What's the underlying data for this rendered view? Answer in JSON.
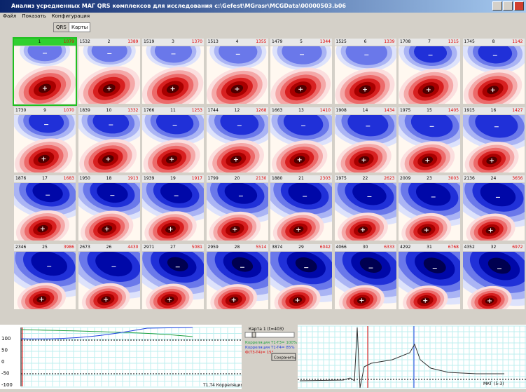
{
  "window": {
    "title": "Анализ усредненных МАГ QRS комплексов для исследования c:\\Gefest\\MGrasr\\MCGData\\00000503.b06"
  },
  "menu": [
    "Файл",
    "Показать",
    "Конфигурация"
  ],
  "tabs": [
    "QRS",
    "Карты"
  ],
  "tiles": [
    {
      "left": "",
      "index": "1",
      "right": "1079"
    },
    {
      "left": "1532",
      "index": "2",
      "right": "1389"
    },
    {
      "left": "1519",
      "index": "3",
      "right": "1370"
    },
    {
      "left": "1513",
      "index": "4",
      "right": "1355"
    },
    {
      "left": "1479",
      "index": "5",
      "right": "1344"
    },
    {
      "left": "1525",
      "index": "6",
      "right": "1339"
    },
    {
      "left": "1708",
      "index": "7",
      "right": "1315"
    },
    {
      "left": "1745",
      "index": "8",
      "right": "1142"
    },
    {
      "left": "1730",
      "index": "9",
      "right": "1070"
    },
    {
      "left": "1839",
      "index": "10",
      "right": "1332"
    },
    {
      "left": "1766",
      "index": "11",
      "right": "1253"
    },
    {
      "left": "1744",
      "index": "12",
      "right": "1268"
    },
    {
      "left": "1663",
      "index": "13",
      "right": "1410"
    },
    {
      "left": "1908",
      "index": "14",
      "right": "1434"
    },
    {
      "left": "1975",
      "index": "15",
      "right": "1405"
    },
    {
      "left": "1915",
      "index": "16",
      "right": "1427"
    },
    {
      "left": "1876",
      "index": "17",
      "right": "1683"
    },
    {
      "left": "1950",
      "index": "18",
      "right": "1913"
    },
    {
      "left": "1939",
      "index": "19",
      "right": "1917"
    },
    {
      "left": "1799",
      "index": "20",
      "right": "2130"
    },
    {
      "left": "1880",
      "index": "21",
      "right": "2303"
    },
    {
      "left": "1975",
      "index": "22",
      "right": "2623"
    },
    {
      "left": "2009",
      "index": "23",
      "right": "3003"
    },
    {
      "left": "2136",
      "index": "24",
      "right": "3656"
    },
    {
      "left": "2346",
      "index": "25",
      "right": "3986"
    },
    {
      "left": "2673",
      "index": "26",
      "right": "4430"
    },
    {
      "left": "2971",
      "index": "27",
      "right": "5081"
    },
    {
      "left": "2959",
      "index": "28",
      "right": "5514"
    },
    {
      "left": "3874",
      "index": "29",
      "right": "6042"
    },
    {
      "left": "4066",
      "index": "30",
      "right": "6333"
    },
    {
      "left": "4292",
      "index": "31",
      "right": "6768"
    },
    {
      "left": "4352",
      "index": "32",
      "right": "6972"
    }
  ],
  "correlation_chart": {
    "yticks": [
      "100",
      "50",
      "0",
      "-50",
      "-100"
    ],
    "xlabel": "T1,T4 Корреляция (%)"
  },
  "control": {
    "map_label": "Карта 1 (t=403)",
    "lines": [
      "Корреляция T1-T3= 100%",
      "Корреляция T1-T4= 85%",
      "Ф(T3-T4)= 15°"
    ],
    "button": "Сохранить"
  },
  "ecg_chart": {
    "label": "МКГ (5-3)"
  }
}
